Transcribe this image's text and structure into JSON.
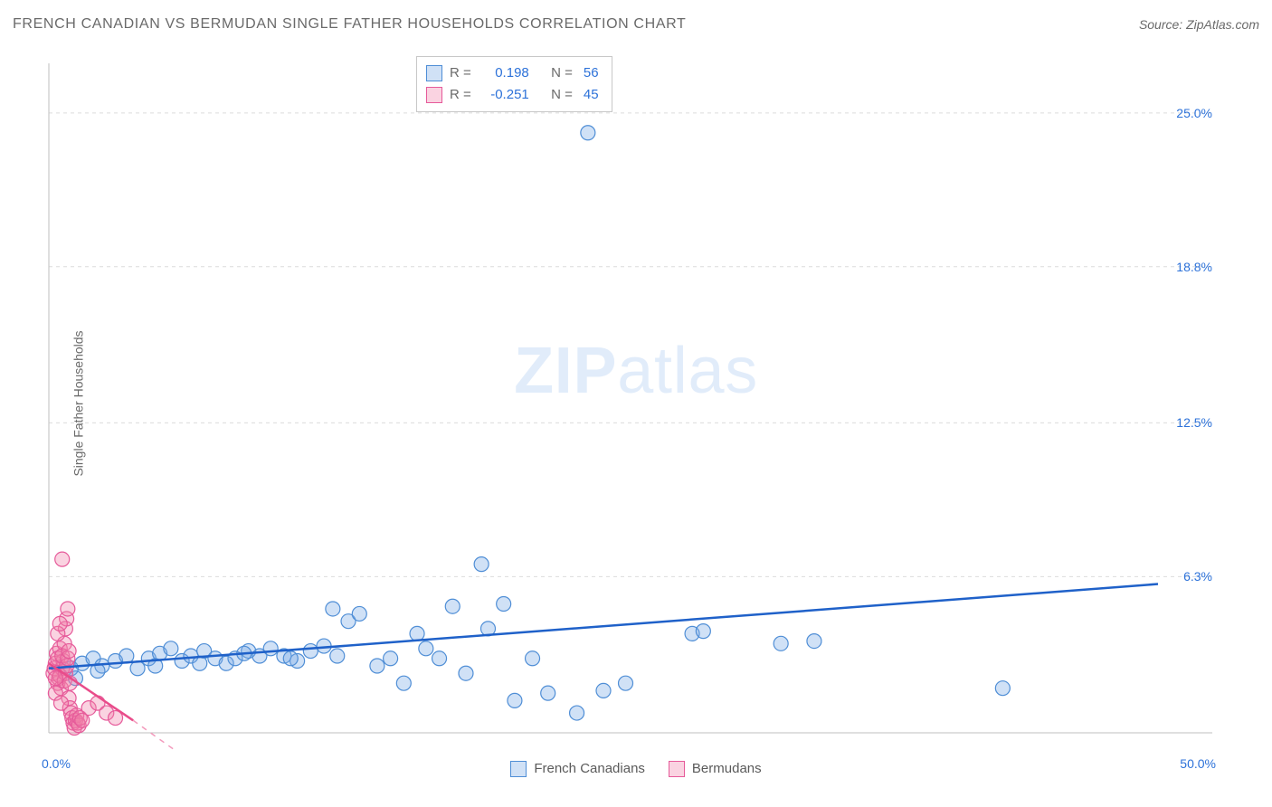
{
  "title": "FRENCH CANADIAN VS BERMUDAN SINGLE FATHER HOUSEHOLDS CORRELATION CHART",
  "source_label": "Source: ZipAtlas.com",
  "y_axis_label": "Single Father Households",
  "watermark_bold": "ZIP",
  "watermark_light": "atlas",
  "chart": {
    "type": "scatter",
    "background_color": "#ffffff",
    "grid_color": "#dcdcdc",
    "axis_color": "#bfbfbf",
    "x_domain": [
      0,
      50
    ],
    "y_domain": [
      0,
      27
    ],
    "y_ticks": [
      6.3,
      12.5,
      18.8,
      25.0
    ],
    "y_tick_labels": [
      "6.3%",
      "12.5%",
      "18.8%",
      "25.0%"
    ],
    "corner_labels": {
      "bottom_left": "0.0%",
      "bottom_right": "50.0%"
    },
    "marker_radius": 8,
    "trend_line_width": 2.5,
    "series": [
      {
        "id": "french_canadians",
        "label": "French Canadians",
        "color_fill": "rgba(120,170,230,0.35)",
        "color_stroke": "#4f8ed6",
        "trend_color": "#1f61c9",
        "R": "0.198",
        "N": "56",
        "trend": {
          "x1": 0,
          "y1": 2.6,
          "x2": 50,
          "y2": 6.0
        },
        "points": [
          [
            1.0,
            2.6
          ],
          [
            1.5,
            2.8
          ],
          [
            2.0,
            3.0
          ],
          [
            2.4,
            2.7
          ],
          [
            3.0,
            2.9
          ],
          [
            3.5,
            3.1
          ],
          [
            4.0,
            2.6
          ],
          [
            4.5,
            3.0
          ],
          [
            5.0,
            3.2
          ],
          [
            5.5,
            3.4
          ],
          [
            6.0,
            2.9
          ],
          [
            6.4,
            3.1
          ],
          [
            7.0,
            3.3
          ],
          [
            7.5,
            3.0
          ],
          [
            8.0,
            2.8
          ],
          [
            8.4,
            3.0
          ],
          [
            9.0,
            3.3
          ],
          [
            9.5,
            3.1
          ],
          [
            10.0,
            3.4
          ],
          [
            10.6,
            3.1
          ],
          [
            11.2,
            2.9
          ],
          [
            11.8,
            3.3
          ],
          [
            12.4,
            3.5
          ],
          [
            13.0,
            3.1
          ],
          [
            13.5,
            4.5
          ],
          [
            12.8,
            5.0
          ],
          [
            14.0,
            4.8
          ],
          [
            14.8,
            2.7
          ],
          [
            15.4,
            3.0
          ],
          [
            16.0,
            2.0
          ],
          [
            16.6,
            4.0
          ],
          [
            17.0,
            3.4
          ],
          [
            17.6,
            3.0
          ],
          [
            18.2,
            5.1
          ],
          [
            18.8,
            2.4
          ],
          [
            19.5,
            6.8
          ],
          [
            19.8,
            4.2
          ],
          [
            20.5,
            5.2
          ],
          [
            21.0,
            1.3
          ],
          [
            21.8,
            3.0
          ],
          [
            22.5,
            1.6
          ],
          [
            23.8,
            0.8
          ],
          [
            25.0,
            1.7
          ],
          [
            26.0,
            2.0
          ],
          [
            24.3,
            24.2
          ],
          [
            29.0,
            4.0
          ],
          [
            29.5,
            4.1
          ],
          [
            33.0,
            3.6
          ],
          [
            34.5,
            3.7
          ],
          [
            43.0,
            1.8
          ],
          [
            1.2,
            2.2
          ],
          [
            2.2,
            2.5
          ],
          [
            4.8,
            2.7
          ],
          [
            6.8,
            2.8
          ],
          [
            8.8,
            3.2
          ],
          [
            10.9,
            3.0
          ]
        ]
      },
      {
        "id": "bermudans",
        "label": "Bermudans",
        "color_fill": "rgba(240,130,170,0.35)",
        "color_stroke": "#e65a9a",
        "trend_color": "#e94c8a",
        "R": "-0.251",
        "N": "45",
        "trend": {
          "x1": 0,
          "y1": 2.8,
          "x2": 3.8,
          "y2": 0.5
        },
        "trend_extrapolate": {
          "x1": 3.8,
          "y1": 0.5,
          "x2": 8.5,
          "y2": -2.5
        },
        "points": [
          [
            0.2,
            2.4
          ],
          [
            0.25,
            2.6
          ],
          [
            0.3,
            2.8
          ],
          [
            0.35,
            3.2
          ],
          [
            0.4,
            2.0
          ],
          [
            0.45,
            2.2
          ],
          [
            0.5,
            3.4
          ],
          [
            0.55,
            1.8
          ],
          [
            0.6,
            2.6
          ],
          [
            0.65,
            2.9
          ],
          [
            0.7,
            3.6
          ],
          [
            0.75,
            4.2
          ],
          [
            0.8,
            4.6
          ],
          [
            0.85,
            5.0
          ],
          [
            0.9,
            1.4
          ],
          [
            0.95,
            1.0
          ],
          [
            1.0,
            0.8
          ],
          [
            1.05,
            0.6
          ],
          [
            1.1,
            0.4
          ],
          [
            1.15,
            0.2
          ],
          [
            1.2,
            0.5
          ],
          [
            1.25,
            0.7
          ],
          [
            0.3,
            1.6
          ],
          [
            0.4,
            3.0
          ],
          [
            0.5,
            2.3
          ],
          [
            0.55,
            1.2
          ],
          [
            0.6,
            3.1
          ],
          [
            0.7,
            2.1
          ],
          [
            0.75,
            2.4
          ],
          [
            0.8,
            2.7
          ],
          [
            0.85,
            3.0
          ],
          [
            0.9,
            3.3
          ],
          [
            0.95,
            2.0
          ],
          [
            1.3,
            0.4
          ],
          [
            1.35,
            0.3
          ],
          [
            0.6,
            7.0
          ],
          [
            1.4,
            0.6
          ],
          [
            1.5,
            0.5
          ],
          [
            1.8,
            1.0
          ],
          [
            2.2,
            1.2
          ],
          [
            2.6,
            0.8
          ],
          [
            3.0,
            0.6
          ],
          [
            0.4,
            4.0
          ],
          [
            0.5,
            4.4
          ],
          [
            0.3,
            2.2
          ]
        ]
      }
    ]
  },
  "stat_legend_prefix_R": "R =",
  "stat_legend_prefix_N": "N =",
  "label_font_size": 14,
  "title_color": "#6a6a6a",
  "tick_label_color": "#2d72d9"
}
